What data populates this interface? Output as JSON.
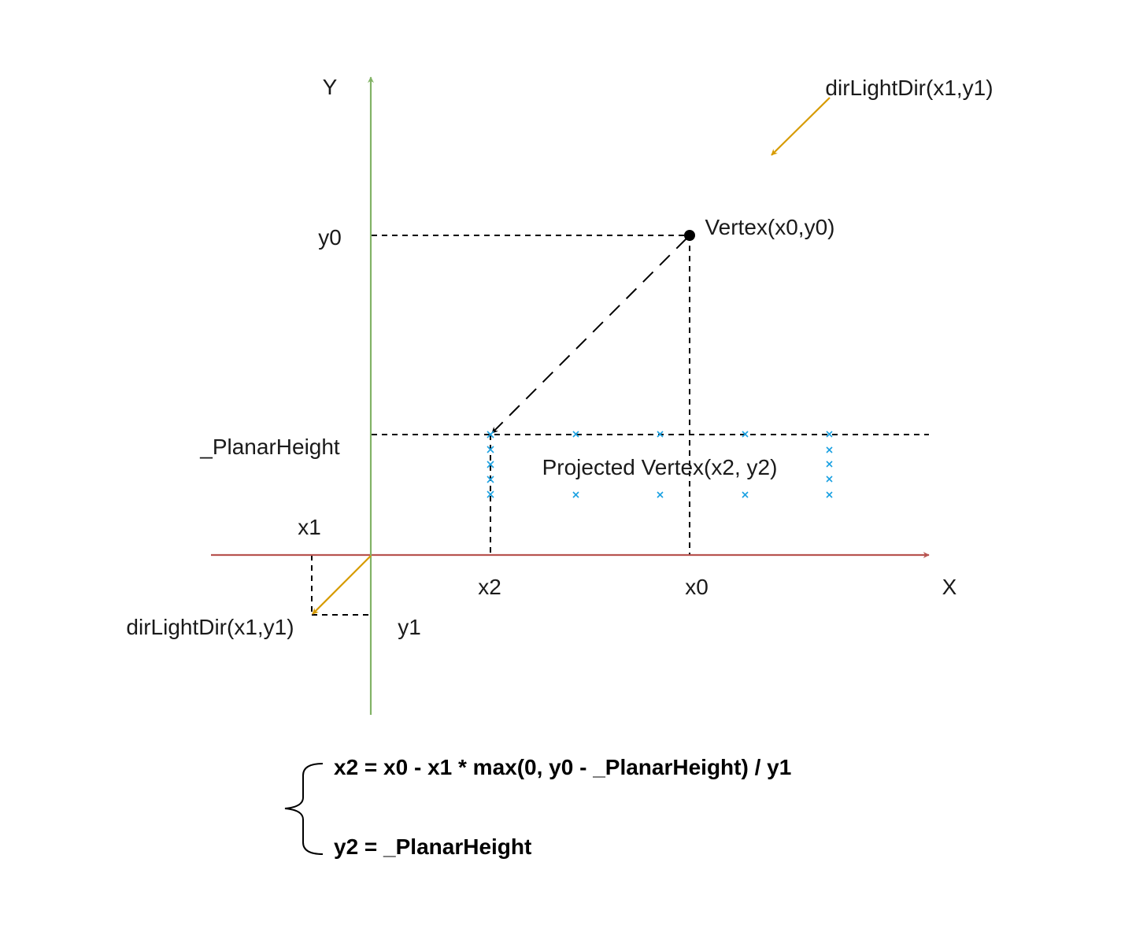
{
  "labels": {
    "y_axis": "Y",
    "x_axis": "X",
    "light_dir_top": "dirLightDir(x1,y1)",
    "vertex": "Vertex(x0,y0)",
    "y0": "y0",
    "planar_height": "_PlanarHeight",
    "projected_vertex": "Projected Vertex(x2, y2)",
    "x1": "x1",
    "x2": "x2",
    "x0": "x0",
    "light_dir_bottom": "dirLightDir(x1,y1)",
    "y1": "y1"
  },
  "formulas": {
    "x2": "x2 = x0 - x1 * max(0, y0 - _PlanarHeight) / y1",
    "y2": "y2 = _PlanarHeight"
  },
  "colors": {
    "x_axis": "#b85450",
    "y_axis": "#82b366",
    "light_arrow": "#d79b00",
    "projected_marker": "#1ba1e2",
    "guide": "#000000"
  }
}
